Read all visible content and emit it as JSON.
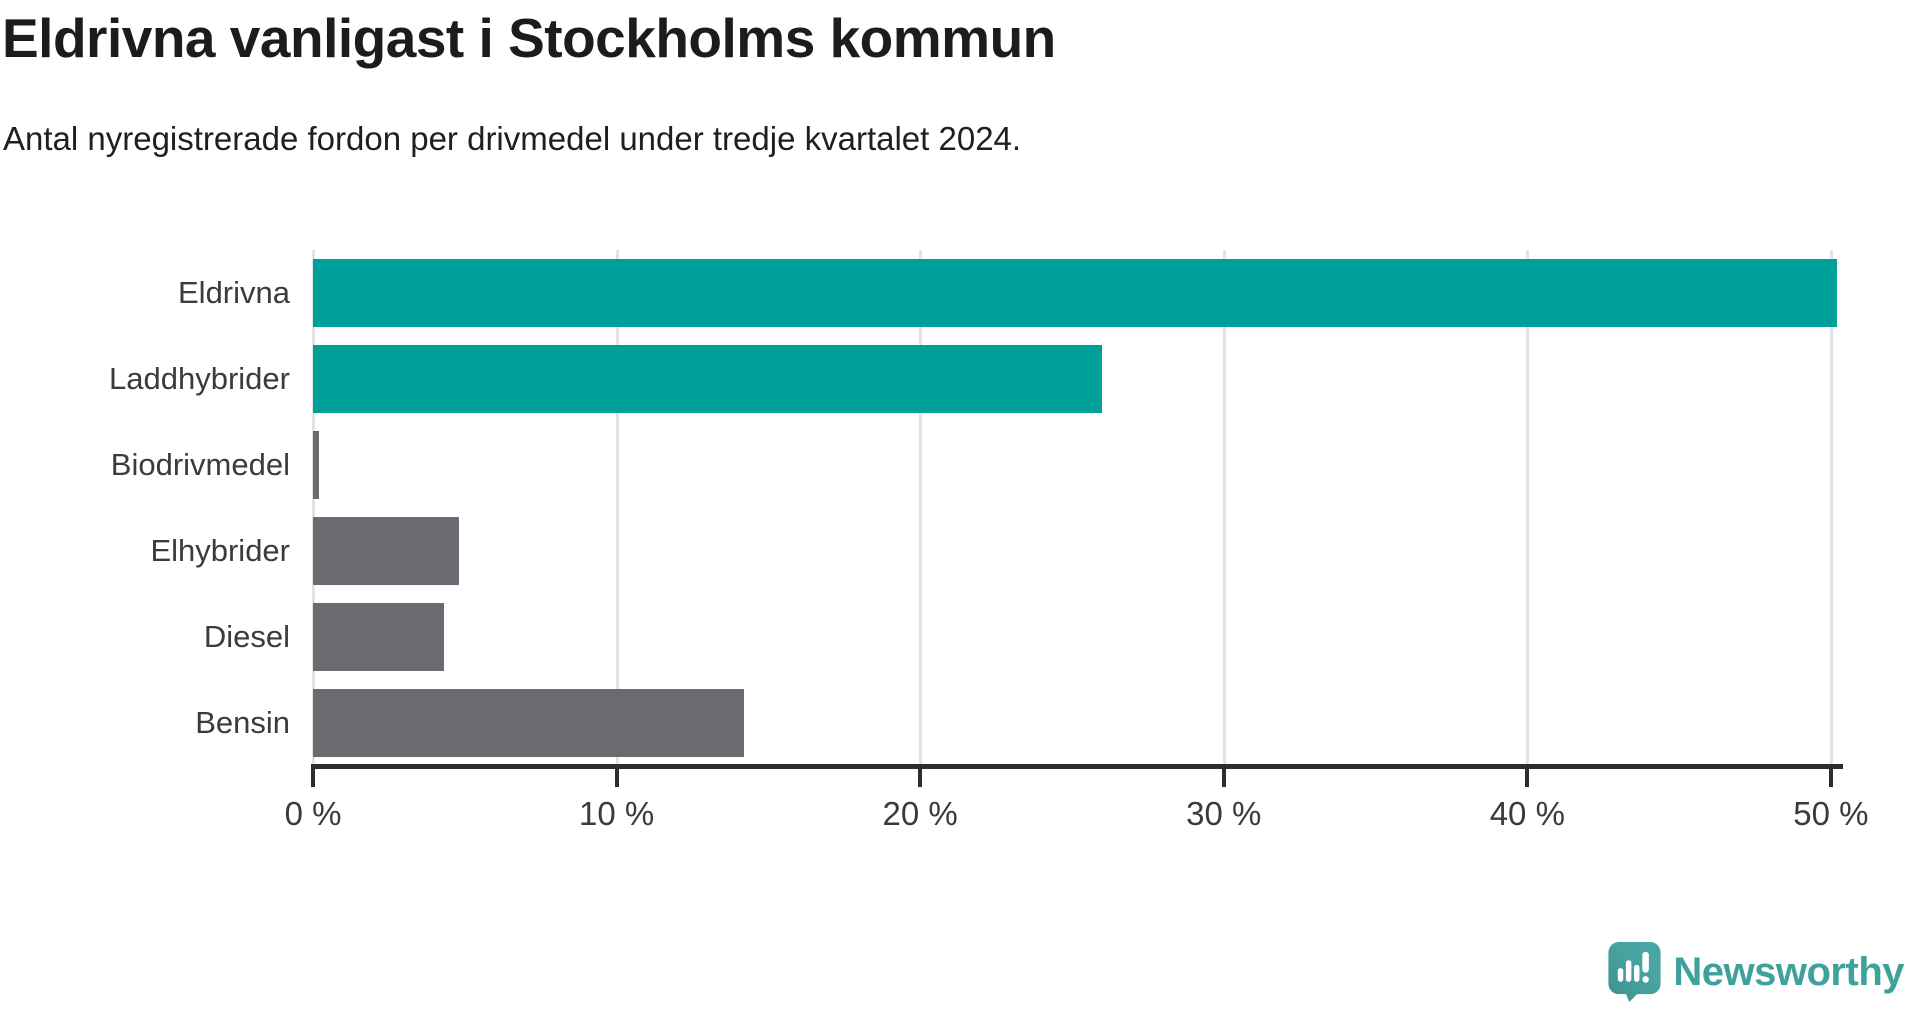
{
  "header": {
    "title": "Eldrivna vanligast i Stockholms kommun",
    "subtitle": "Antal nyregistrerade fordon per drivmedel under tredje kvartalet 2024."
  },
  "chart_data": {
    "type": "bar",
    "orientation": "horizontal",
    "title": "Eldrivna vanligast i Stockholms kommun",
    "subtitle": "Antal nyregistrerade fordon per drivmedel under tredje kvartalet 2024.",
    "categories": [
      "Eldrivna",
      "Laddhybrider",
      "Biodrivmedel",
      "Elhybrider",
      "Diesel",
      "Bensin"
    ],
    "values": [
      50.2,
      26.0,
      0.2,
      4.8,
      4.3,
      14.2
    ],
    "unit": "%",
    "bar_colors": [
      "#00a09a",
      "#00a09a",
      "#6a6a70",
      "#6a6a70",
      "#6a6a70",
      "#6a6a70"
    ],
    "highlight_color": "#00a09a",
    "default_color": "#6a6a70",
    "x_ticks": [
      0,
      10,
      20,
      30,
      40,
      50
    ],
    "x_tick_labels": [
      "0 %",
      "10 %",
      "20 %",
      "30 %",
      "40 %",
      "50 %"
    ],
    "xlim": [
      0,
      50.3
    ],
    "grid": "vertical-only",
    "gridline_color": "#e3e3e3",
    "legend": "none"
  },
  "footer": {
    "brand": "Newsworthy",
    "brand_color": "#3fa19b",
    "logo": "newsworthy-speech-bubble-chart-icon"
  }
}
